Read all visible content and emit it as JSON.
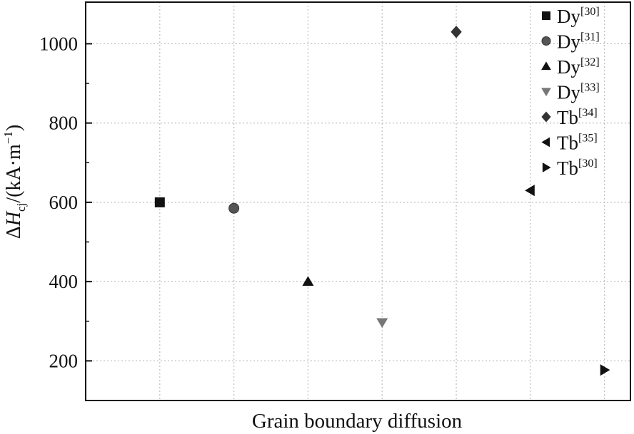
{
  "chart_data": {
    "type": "scatter",
    "title": "",
    "xlabel": "Grain boundary diffusion",
    "ylabel": {
      "prefix": "Δ",
      "symbol": "H",
      "subscript": "cj",
      "unit_open": "/(kA·m",
      "unit_exp": "−1",
      "unit_close": ")"
    },
    "ylim": [
      100,
      1105
    ],
    "yticks": [
      200,
      400,
      600,
      800,
      1000
    ],
    "xlim": [
      0,
      7.35
    ],
    "grid": true,
    "legend_position": "top-right",
    "series": [
      {
        "name": "Dy",
        "ref": "[30]",
        "marker": "square",
        "color": "#111111",
        "x": 1,
        "y": 600
      },
      {
        "name": "Dy",
        "ref": "[31]",
        "marker": "circle",
        "color": "#555555",
        "x": 2,
        "y": 585
      },
      {
        "name": "Dy",
        "ref": "[32]",
        "marker": "triangle-up",
        "color": "#111111",
        "x": 3,
        "y": 400
      },
      {
        "name": "Dy",
        "ref": "[33]",
        "marker": "triangle-down",
        "color": "#777777",
        "x": 4,
        "y": 297
      },
      {
        "name": "Tb",
        "ref": "[34]",
        "marker": "diamond",
        "color": "#333333",
        "x": 5,
        "y": 1030
      },
      {
        "name": "Tb",
        "ref": "[35]",
        "marker": "triangle-left",
        "color": "#111111",
        "x": 6,
        "y": 630
      },
      {
        "name": "Tb",
        "ref": "[30]",
        "marker": "triangle-right",
        "color": "#111111",
        "x": 7,
        "y": 177
      }
    ]
  }
}
